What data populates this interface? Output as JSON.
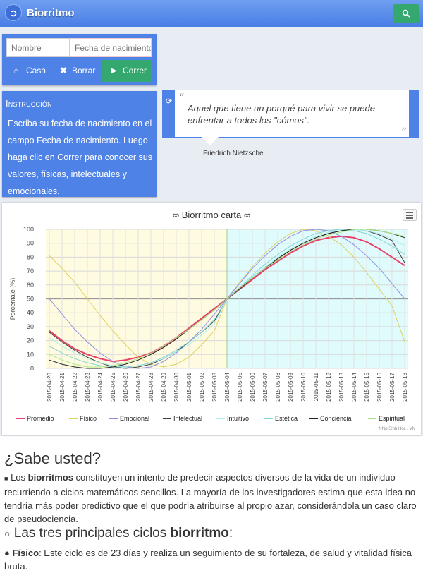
{
  "app": {
    "title": "Biorritmo"
  },
  "form": {
    "name_placeholder": "Nombre",
    "birth_placeholder": "Fecha de nacimiento",
    "home_label": "Casa",
    "clear_label": "Borrar",
    "run_label": "Correr"
  },
  "instructions": {
    "title": "Instrucción",
    "body": "Escriba su fecha de nacimiento en el campo Fecha de nacimiento. Luego haga clic en Correr para conocer sus valores, físicas, intelectuales y emocionales."
  },
  "quote": {
    "open_mark": "“",
    "close_mark": "”",
    "text": "Aquel que tiene un porqué para vivir se puede enfrentar a todos los \"cómos\".",
    "author": "Friedrich Nietzsche"
  },
  "chart_data": {
    "type": "line",
    "title": "∞ Biorritmo carta ∞",
    "ylabel": "Porcentaje (%)",
    "xlabel": "",
    "ylim": [
      0,
      100
    ],
    "yticks": [
      0,
      10,
      20,
      30,
      40,
      50,
      60,
      70,
      80,
      90,
      100
    ],
    "credit": "Nhịp Sinh Học . VN",
    "x": [
      "2015-04-20",
      "2015-04-21",
      "2015-04-22",
      "2015-04-23",
      "2015-04-24",
      "2015-04-25",
      "2015-04-26",
      "2015-04-27",
      "2015-04-28",
      "2015-04-29",
      "2015-04-30",
      "2015-05-01",
      "2015-05-02",
      "2015-05-03",
      "2015-05-04",
      "2015-05-05",
      "2015-05-06",
      "2015-05-07",
      "2015-05-08",
      "2015-05-09",
      "2015-05-10",
      "2015-05-11",
      "2015-05-12",
      "2015-05-13",
      "2015-05-14",
      "2015-05-15",
      "2015-05-16",
      "2015-05-17",
      "2015-05-18"
    ],
    "highlight": {
      "past_color": "#fffbe0",
      "future_color": "#e0fbfb",
      "today": "2015-05-04"
    },
    "series": [
      {
        "name": "Promedio",
        "color": "#e8406a",
        "values": [
          27,
          20,
          14,
          10,
          7,
          5,
          6,
          8,
          11,
          16,
          22,
          29,
          36,
          43,
          50,
          57,
          64,
          71,
          77,
          83,
          88,
          92,
          94,
          95,
          94,
          91,
          86,
          80,
          74
        ]
      },
      {
        "name": "Físico",
        "color": "#e0d060",
        "values": [
          81,
          72,
          62,
          50,
          38,
          27,
          17,
          8,
          3,
          1,
          3,
          8,
          17,
          27,
          50,
          62,
          73,
          83,
          91,
          97,
          100,
          99,
          95,
          89,
          80,
          69,
          57,
          45,
          19
        ]
      },
      {
        "name": "Emocional",
        "color": "#8f8fe8",
        "values": [
          50,
          39,
          28,
          19,
          11,
          5,
          1,
          0,
          1,
          5,
          11,
          19,
          28,
          39,
          50,
          61,
          72,
          81,
          89,
          95,
          99,
          100,
          99,
          95,
          89,
          81,
          72,
          61,
          50
        ]
      },
      {
        "name": "Intelectual",
        "color": "#404040",
        "values": [
          26,
          19,
          13,
          8,
          4,
          1,
          0,
          1,
          3,
          7,
          12,
          19,
          26,
          34,
          50,
          57,
          65,
          72,
          79,
          85,
          90,
          94,
          97,
          99,
          100,
          99,
          96,
          92,
          76
        ]
      },
      {
        "name": "Intuitivo",
        "color": "#b0eef0",
        "values": [
          22,
          16,
          11,
          7,
          4,
          2,
          1,
          2,
          4,
          7,
          12,
          17,
          24,
          32,
          50,
          58,
          66,
          73,
          80,
          86,
          91,
          95,
          98,
          99,
          100,
          99,
          97,
          93,
          88
        ]
      },
      {
        "name": "Estética",
        "color": "#7ed6d6",
        "values": [
          16,
          11,
          7,
          4,
          2,
          1,
          1,
          2,
          4,
          8,
          13,
          19,
          26,
          35,
          50,
          58,
          67,
          75,
          82,
          88,
          93,
          97,
          99,
          100,
          99,
          97,
          93,
          88,
          82
        ]
      },
      {
        "name": "Conciencia",
        "color": "#222222",
        "values": [
          6,
          3,
          1,
          0,
          0,
          1,
          3,
          6,
          10,
          15,
          21,
          28,
          35,
          42,
          50,
          58,
          65,
          72,
          79,
          85,
          90,
          94,
          97,
          99,
          100,
          100,
          99,
          97,
          94
        ]
      },
      {
        "name": "Espiritual",
        "color": "#a8e87e",
        "values": [
          10,
          6,
          3,
          1,
          1,
          2,
          4,
          7,
          11,
          16,
          22,
          28,
          35,
          42,
          50,
          58,
          65,
          72,
          78,
          84,
          89,
          93,
          96,
          98,
          100,
          100,
          99,
          97,
          95
        ]
      }
    ]
  },
  "info": {
    "heading": "¿Sabe usted?",
    "p1_prefix": "Los ",
    "p1_bold": "biorritmos",
    "p1_rest": " constituyen un intento de predecir aspectos diversos de la vida de un individuo recurriendo a ciclos matemáticos sencillos. La mayoría de los investigadores estima que esta idea no tendría más poder predictivo que el que podría atribuirse al propio azar, considerándola un caso claro de pseudociencia.",
    "sub_prefix": "Las tres principales ciclos ",
    "sub_bold": "biorritmo",
    "sub_suffix": ":",
    "p2_bold": "Físico",
    "p2_rest": ": Este ciclo es de 23 días y realiza un seguimiento de su fortaleza, de salud y vitalidad física bruta."
  }
}
